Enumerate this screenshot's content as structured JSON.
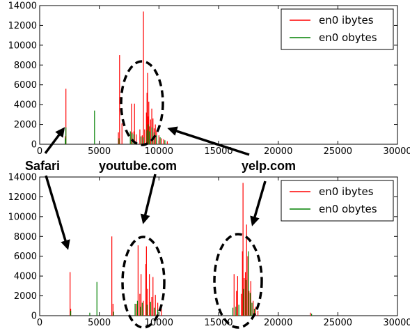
{
  "chart_data": [
    {
      "type": "bar",
      "xlim": [
        0,
        30000
      ],
      "ylim": [
        0,
        14000
      ],
      "x_ticks": [
        0,
        5000,
        10000,
        15000,
        20000,
        25000,
        30000
      ],
      "y_ticks": [
        0,
        2000,
        4000,
        6000,
        8000,
        10000,
        12000,
        14000
      ],
      "legend_position": "top-right",
      "series": [
        {
          "name": "en0 ibytes",
          "color": "#ff0000",
          "points": [
            [
              2150,
              800
            ],
            [
              2200,
              5600
            ],
            [
              6600,
              1200
            ],
            [
              6700,
              9000
            ],
            [
              6900,
              2100
            ],
            [
              7700,
              4100
            ],
            [
              7750,
              1200
            ],
            [
              7900,
              1300
            ],
            [
              7950,
              4100
            ],
            [
              8100,
              1000
            ],
            [
              8400,
              1500
            ],
            [
              8600,
              900
            ],
            [
              8700,
              13400
            ],
            [
              8800,
              1500
            ],
            [
              8950,
              3200
            ],
            [
              9000,
              5200
            ],
            [
              9050,
              7200
            ],
            [
              9100,
              2800
            ],
            [
              9150,
              4300
            ],
            [
              9200,
              1800
            ],
            [
              9300,
              2500
            ],
            [
              9400,
              3600
            ],
            [
              9500,
              2600
            ],
            [
              9600,
              1600
            ],
            [
              9700,
              2000
            ],
            [
              9800,
              1300
            ],
            [
              10000,
              900
            ],
            [
              10200,
              600
            ],
            [
              10400,
              500
            ],
            [
              10700,
              300
            ]
          ]
        },
        {
          "name": "en0 obytes",
          "color": "#008000",
          "points": [
            [
              2150,
              600
            ],
            [
              2200,
              1700
            ],
            [
              4600,
              3400
            ],
            [
              6650,
              600
            ],
            [
              7600,
              1300
            ],
            [
              7750,
              1100
            ],
            [
              7900,
              1000
            ],
            [
              8500,
              800
            ],
            [
              8700,
              700
            ],
            [
              9000,
              1400
            ],
            [
              9100,
              2000
            ],
            [
              9200,
              1300
            ],
            [
              9400,
              1700
            ],
            [
              9600,
              1200
            ],
            [
              9800,
              900
            ],
            [
              10100,
              700
            ],
            [
              10500,
              400
            ]
          ]
        }
      ]
    },
    {
      "type": "bar",
      "xlim": [
        0,
        30000
      ],
      "ylim": [
        0,
        14000
      ],
      "x_ticks": [
        0,
        5000,
        10000,
        15000,
        20000,
        25000,
        30000
      ],
      "y_ticks": [
        0,
        2000,
        4000,
        6000,
        8000,
        10000,
        12000,
        14000
      ],
      "legend_position": "top-right",
      "series": [
        {
          "name": "en0 ibytes",
          "color": "#ff0000",
          "points": [
            [
              2550,
              4400
            ],
            [
              2600,
              700
            ],
            [
              6050,
              8000
            ],
            [
              6150,
              1200
            ],
            [
              8100,
              1200
            ],
            [
              8250,
              7100
            ],
            [
              8400,
              2200
            ],
            [
              8500,
              4200
            ],
            [
              8700,
              1500
            ],
            [
              8900,
              5200
            ],
            [
              8950,
              7000
            ],
            [
              9050,
              2700
            ],
            [
              9200,
              4200
            ],
            [
              9400,
              1900
            ],
            [
              9500,
              3900
            ],
            [
              9700,
              2100
            ],
            [
              9900,
              1300
            ],
            [
              10200,
              700
            ],
            [
              16300,
              4200
            ],
            [
              16500,
              2500
            ],
            [
              16600,
              4000
            ],
            [
              16900,
              2200
            ],
            [
              17000,
              6500
            ],
            [
              17050,
              13400
            ],
            [
              17150,
              3800
            ],
            [
              17250,
              4400
            ],
            [
              17350,
              9200
            ],
            [
              17450,
              6000
            ],
            [
              17550,
              2500
            ],
            [
              17700,
              3500
            ],
            [
              17900,
              1500
            ],
            [
              18100,
              900
            ],
            [
              18300,
              500
            ],
            [
              22700,
              300
            ]
          ]
        },
        {
          "name": "en0 obytes",
          "color": "#008000",
          "points": [
            [
              2600,
              500
            ],
            [
              4200,
              300
            ],
            [
              4800,
              3400
            ],
            [
              6200,
              400
            ],
            [
              8000,
              1200
            ],
            [
              8200,
              1500
            ],
            [
              8450,
              900
            ],
            [
              8600,
              1300
            ],
            [
              9000,
              1100
            ],
            [
              9300,
              1400
            ],
            [
              9600,
              800
            ],
            [
              9900,
              600
            ],
            [
              16200,
              800
            ],
            [
              16450,
              900
            ],
            [
              16700,
              1100
            ],
            [
              17100,
              2700
            ],
            [
              17300,
              3600
            ],
            [
              17500,
              6500
            ],
            [
              17650,
              2300
            ],
            [
              17800,
              1300
            ],
            [
              18000,
              700
            ],
            [
              22800,
              200
            ]
          ]
        }
      ]
    }
  ],
  "annotations": {
    "safari": "Safari",
    "youtube": "youtube.com",
    "yelp": "yelp.com"
  }
}
